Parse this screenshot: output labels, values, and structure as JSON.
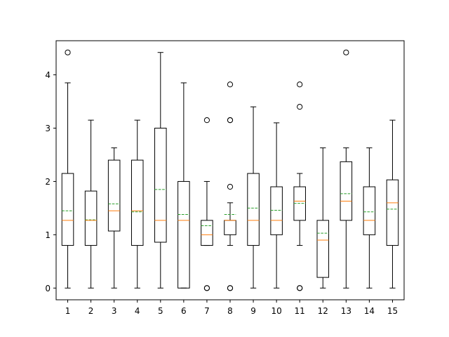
{
  "chart_data": {
    "type": "box",
    "title": "",
    "xlabel": "",
    "ylabel": "",
    "categories": [
      "1",
      "2",
      "3",
      "4",
      "5",
      "6",
      "7",
      "8",
      "9",
      "10",
      "11",
      "12",
      "13",
      "14",
      "15"
    ],
    "ylim": [
      -0.22,
      4.64
    ],
    "yticks": [
      0,
      1,
      2,
      3,
      4
    ],
    "ytick_labels": [
      "0",
      "1",
      "2",
      "3",
      "4"
    ],
    "grid": false,
    "legend": "none",
    "show_means": true,
    "colors": {
      "box": "#000000",
      "median": "#ff7f0e",
      "mean": "#2ca02c",
      "outlier": "#000000"
    },
    "boxes": [
      {
        "label": "1",
        "whislo": 0.0,
        "q1": 0.8,
        "med": 1.27,
        "q3": 2.15,
        "whishi": 3.85,
        "mean": 1.45,
        "fliers": [
          4.42
        ]
      },
      {
        "label": "2",
        "whislo": 0.0,
        "q1": 0.8,
        "med": 1.27,
        "q3": 1.82,
        "whishi": 3.15,
        "mean": 1.28,
        "fliers": []
      },
      {
        "label": "3",
        "whislo": 0.0,
        "q1": 1.07,
        "med": 1.45,
        "q3": 2.4,
        "whishi": 2.63,
        "mean": 1.58,
        "fliers": []
      },
      {
        "label": "4",
        "whislo": 0.0,
        "q1": 0.8,
        "med": 1.45,
        "q3": 2.4,
        "whishi": 3.15,
        "mean": 1.43,
        "fliers": []
      },
      {
        "label": "5",
        "whislo": 0.0,
        "q1": 0.86,
        "med": 1.27,
        "q3": 3.0,
        "whishi": 4.42,
        "mean": 1.85,
        "fliers": []
      },
      {
        "label": "6",
        "whislo": 0.0,
        "q1": 0.0,
        "med": 1.27,
        "q3": 2.0,
        "whishi": 3.85,
        "mean": 1.38,
        "fliers": []
      },
      {
        "label": "7",
        "whislo": 0.8,
        "q1": 0.8,
        "med": 1.0,
        "q3": 1.27,
        "whishi": 2.0,
        "mean": 1.17,
        "fliers": [
          0.0,
          0.0,
          3.15
        ]
      },
      {
        "label": "8",
        "whislo": 0.8,
        "q1": 1.0,
        "med": 1.27,
        "q3": 1.27,
        "whishi": 1.6,
        "mean": 1.38,
        "fliers": [
          0.0,
          0.0,
          1.9,
          3.15,
          3.15,
          3.82
        ]
      },
      {
        "label": "9",
        "whislo": 0.0,
        "q1": 0.8,
        "med": 1.27,
        "q3": 2.15,
        "whishi": 3.4,
        "mean": 1.5,
        "fliers": []
      },
      {
        "label": "10",
        "whislo": 0.0,
        "q1": 1.0,
        "med": 1.27,
        "q3": 1.9,
        "whishi": 3.1,
        "mean": 1.46,
        "fliers": []
      },
      {
        "label": "11",
        "whislo": 0.8,
        "q1": 1.27,
        "med": 1.63,
        "q3": 1.9,
        "whishi": 2.15,
        "mean": 1.59,
        "fliers": [
          0.0,
          0.0,
          3.4,
          3.82
        ]
      },
      {
        "label": "12",
        "whislo": 0.0,
        "q1": 0.2,
        "med": 0.9,
        "q3": 1.27,
        "whishi": 2.63,
        "mean": 1.03,
        "fliers": []
      },
      {
        "label": "13",
        "whislo": 0.0,
        "q1": 1.27,
        "med": 1.63,
        "q3": 2.37,
        "whishi": 2.63,
        "mean": 1.77,
        "fliers": [
          4.42
        ]
      },
      {
        "label": "14",
        "whislo": 0.0,
        "q1": 1.0,
        "med": 1.27,
        "q3": 1.9,
        "whishi": 2.63,
        "mean": 1.43,
        "fliers": []
      },
      {
        "label": "15",
        "whislo": 0.0,
        "q1": 0.8,
        "med": 1.6,
        "q3": 2.03,
        "whishi": 3.15,
        "mean": 1.48,
        "fliers": []
      }
    ]
  }
}
